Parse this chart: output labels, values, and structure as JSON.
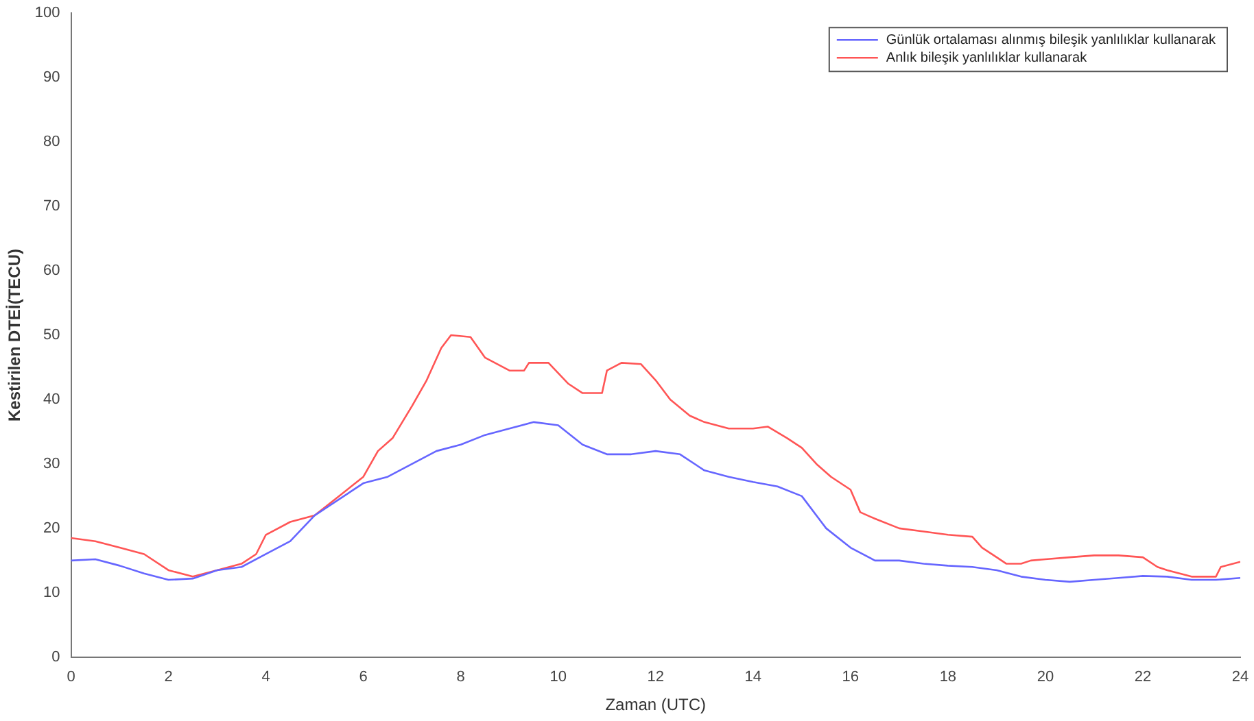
{
  "chart_data": {
    "type": "line",
    "xlabel": "Zaman (UTC)",
    "ylabel": "Kestirilen DTEİ(TECU)",
    "xlim": [
      0,
      24
    ],
    "xticks": [
      0,
      2,
      4,
      6,
      8,
      10,
      12,
      14,
      16,
      18,
      20,
      22,
      24
    ],
    "ylim": [
      0,
      100
    ],
    "yticks": [
      0,
      10,
      20,
      30,
      40,
      50,
      60,
      70,
      80,
      90,
      100
    ],
    "grid": false,
    "legend": "top right",
    "marker": "none",
    "line_style": "solid",
    "series": [
      {
        "name": "Günlük ortalaması alınmış bileşik yanlılıklar kullanarak",
        "color": "#6666ff",
        "x": [
          0,
          0.5,
          1,
          1.5,
          2,
          2.5,
          3,
          3.5,
          4,
          4.5,
          5,
          5.5,
          6,
          6.5,
          7,
          7.5,
          8,
          8.5,
          9,
          9.5,
          10,
          10.5,
          11,
          11.5,
          12,
          12.5,
          13,
          13.5,
          14,
          14.5,
          15,
          15.5,
          16,
          16.5,
          17,
          17.5,
          18,
          18.5,
          19,
          19.5,
          20,
          20.5,
          21,
          21.5,
          22,
          22.5,
          23,
          23.5,
          24
        ],
        "values": [
          15,
          15.2,
          14.2,
          13,
          12,
          12.2,
          13.5,
          14,
          16,
          18,
          22,
          24.5,
          27,
          28,
          30,
          32,
          33,
          34.5,
          35.5,
          36.5,
          36,
          33,
          31.5,
          31.5,
          32,
          31.5,
          29,
          28,
          27.2,
          26.5,
          25,
          20,
          17,
          15,
          15,
          14.5,
          14.2,
          14,
          13.5,
          12.5,
          12,
          11.7,
          12,
          12.3,
          12.6,
          12.5,
          12,
          12,
          12.3
        ]
      },
      {
        "name": "Anlık bileşik yanlılıklar kullanarak",
        "color": "#ff5555",
        "x": [
          0,
          0.5,
          1,
          1.5,
          2,
          2.5,
          3,
          3.5,
          3.8,
          4,
          4.5,
          5,
          5.5,
          6,
          6.3,
          6.6,
          7,
          7.3,
          7.6,
          7.8,
          8.2,
          8.5,
          9,
          9.3,
          9.4,
          9.8,
          10.2,
          10.5,
          10.9,
          11,
          11.3,
          11.7,
          12,
          12.3,
          12.7,
          13,
          13.5,
          14,
          14.3,
          14.7,
          15,
          15.3,
          15.6,
          16,
          16.2,
          16.5,
          17,
          17.5,
          18,
          18.5,
          18.7,
          19,
          19.2,
          19.5,
          19.7,
          20,
          20.5,
          21,
          21.5,
          22,
          22.3,
          22.5,
          23,
          23.5,
          23.6,
          24
        ],
        "values": [
          18.5,
          18,
          17,
          16,
          13.5,
          12.5,
          13.5,
          14.5,
          16,
          19,
          21,
          22,
          25,
          28,
          32,
          34,
          39,
          43,
          48,
          50,
          49.7,
          46.5,
          44.5,
          44.5,
          45.7,
          45.7,
          42.5,
          41,
          41,
          44.5,
          45.7,
          45.5,
          43,
          40,
          37.5,
          36.5,
          35.5,
          35.5,
          35.8,
          34,
          32.5,
          30,
          28,
          26,
          22.5,
          21.5,
          20,
          19.5,
          19,
          18.7,
          17,
          15.5,
          14.5,
          14.5,
          15,
          15.2,
          15.5,
          15.8,
          15.8,
          15.5,
          14,
          13.5,
          12.5,
          12.5,
          14,
          14.8
        ]
      }
    ]
  }
}
